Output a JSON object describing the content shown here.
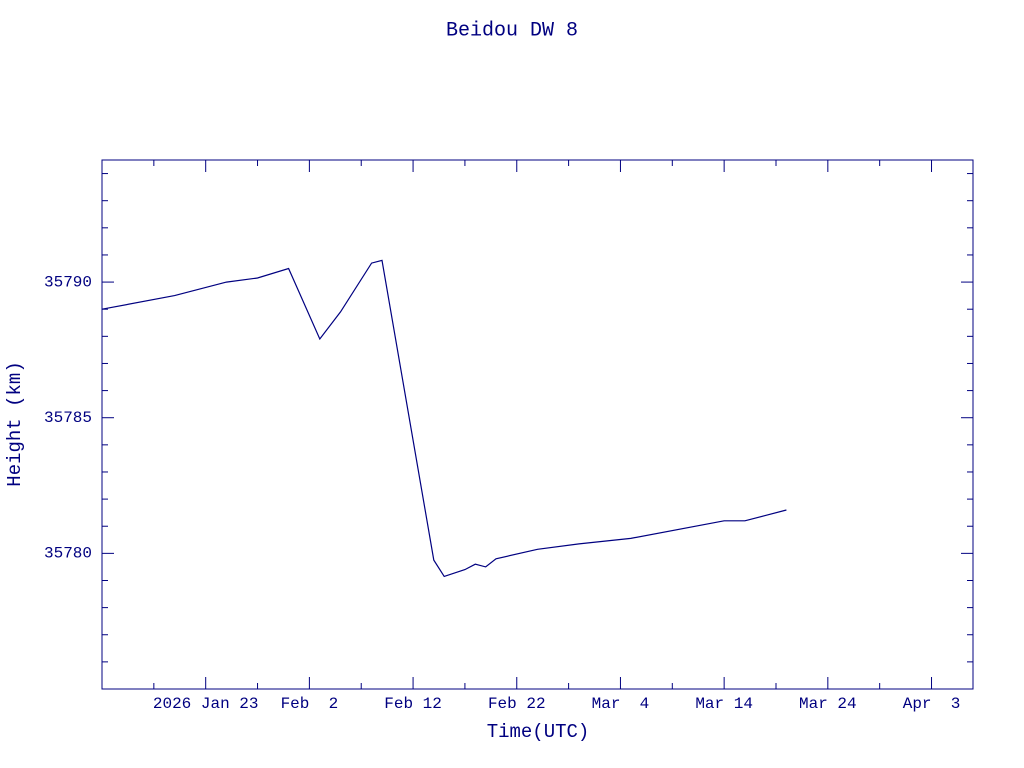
{
  "chart_data": {
    "type": "line",
    "title": "Beidou DW 8",
    "xlabel": "Time(UTC)",
    "ylabel": "Height (km)",
    "color": "#000080",
    "x": [
      "2026-01-13",
      "2026-01-20",
      "2026-01-25",
      "2026-01-28",
      "2026-01-31",
      "2026-02-03",
      "2026-02-05",
      "2026-02-08",
      "2026-02-09",
      "2026-02-14",
      "2026-02-15",
      "2026-02-17",
      "2026-02-18",
      "2026-02-19",
      "2026-02-20",
      "2026-02-24",
      "2026-02-28",
      "2026-03-05",
      "2026-03-14",
      "2026-03-16",
      "2026-03-18",
      "2026-03-20"
    ],
    "series": [
      {
        "name": "Height",
        "color": "#000080",
        "values": [
          35789.0,
          35789.5,
          35790.0,
          35790.15,
          35790.5,
          35787.9,
          35788.9,
          35790.7,
          35790.8,
          35779.75,
          35779.15,
          35779.4,
          35779.6,
          35779.5,
          35779.8,
          35780.15,
          35780.35,
          35780.55,
          35781.2,
          35781.2,
          35781.4,
          35781.6
        ]
      }
    ],
    "xlim": [
      "2026-01-13",
      "2026-04-07"
    ],
    "xticks": [
      {
        "value": "2026-01-23",
        "label": "2026 Jan 23"
      },
      {
        "value": "2026-02-02",
        "label": "Feb  2"
      },
      {
        "value": "2026-02-12",
        "label": "Feb 12"
      },
      {
        "value": "2026-02-22",
        "label": "Feb 22"
      },
      {
        "value": "2026-03-04",
        "label": "Mar  4"
      },
      {
        "value": "2026-03-14",
        "label": "Mar 14"
      },
      {
        "value": "2026-03-24",
        "label": "Mar 24"
      },
      {
        "value": "2026-04-03",
        "label": "Apr  3"
      }
    ],
    "xminor_ticks": [
      "2026-01-18",
      "2026-01-28",
      "2026-02-07",
      "2026-02-17",
      "2026-02-27",
      "2026-03-09",
      "2026-03-19",
      "2026-03-29"
    ],
    "ylim": [
      35775,
      35794.5
    ],
    "yticks": [
      35780,
      35785,
      35790
    ],
    "yminor_ticks": [
      35776,
      35777,
      35778,
      35779,
      35781,
      35782,
      35783,
      35784,
      35786,
      35787,
      35788,
      35789,
      35791,
      35792,
      35793,
      35794
    ],
    "grid": false
  }
}
